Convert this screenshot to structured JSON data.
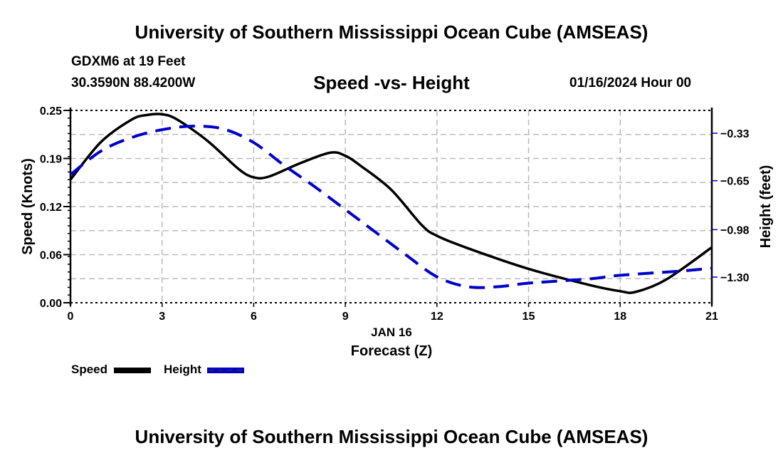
{
  "header": {
    "main_title": "University of Southern Mississippi Ocean Cube (AMSEAS)",
    "station": "GDXM6 at 19 Feet",
    "coords": "30.3590N  88.4200W",
    "run_date": "01/16/2024 Hour 00",
    "footer_title": "University of Southern Mississippi Ocean Cube (AMSEAS)"
  },
  "chart_data": {
    "type": "line",
    "title": "Speed -vs- Height",
    "xlabel": "Forecast (Z)",
    "date_label": "JAN 16",
    "ylabel": "Speed (Knots)",
    "y2label": "Height (feet)",
    "xlim": [
      0,
      21
    ],
    "ylim": [
      0,
      0.25
    ],
    "y2lim": [
      -1.473,
      -0.176
    ],
    "x_ticks": [
      0,
      3,
      6,
      9,
      12,
      15,
      18,
      21
    ],
    "x_tick_labels": [
      "0",
      "3",
      "6",
      "9",
      "12",
      "15",
      "18",
      "21"
    ],
    "y_ticks": [
      0,
      0.0625,
      0.125,
      0.1875,
      0.25
    ],
    "y_tick_labels": [
      "0.00",
      "0.06",
      "0.12",
      "0.19",
      "0.25"
    ],
    "y2_ticks": [
      -0.33,
      -0.65,
      -0.98,
      -1.3
    ],
    "y2_tick_labels": [
      "−0.33",
      "−0.65",
      "−0.98",
      "−1.30"
    ],
    "grid": true,
    "legend_position": "bottom-left",
    "series": [
      {
        "name": "Speed",
        "axis": "left",
        "color": "#000000",
        "style": "solid",
        "x": [
          0,
          1,
          2,
          2.5,
          3,
          3.5,
          4.5,
          5.5,
          6,
          6.5,
          7.5,
          8.5,
          9,
          9.5,
          10.5,
          11.5,
          12,
          13,
          15,
          17,
          18,
          18.5,
          19.5,
          21
        ],
        "values": [
          0.16,
          0.209,
          0.238,
          0.244,
          0.245,
          0.238,
          0.21,
          0.174,
          0.163,
          0.164,
          0.181,
          0.195,
          0.191,
          0.178,
          0.147,
          0.101,
          0.087,
          0.071,
          0.044,
          0.023,
          0.015,
          0.014,
          0.03,
          0.072
        ]
      },
      {
        "name": "Height",
        "axis": "right",
        "color": "#0000cc",
        "style": "dashed",
        "x": [
          0,
          1,
          2,
          3,
          4,
          5,
          6,
          7,
          8,
          9,
          10,
          11,
          12,
          13,
          14,
          15,
          17,
          18,
          20,
          21
        ],
        "values": [
          -0.609,
          -0.45,
          -0.359,
          -0.306,
          -0.282,
          -0.301,
          -0.393,
          -0.547,
          -0.691,
          -0.845,
          -0.999,
          -1.153,
          -1.298,
          -1.365,
          -1.365,
          -1.341,
          -1.312,
          -1.288,
          -1.259,
          -1.24
        ]
      }
    ]
  }
}
